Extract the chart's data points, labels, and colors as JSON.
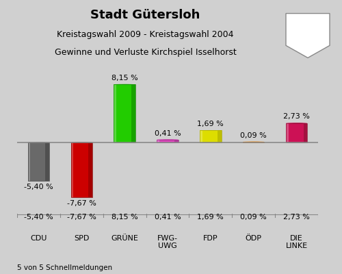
{
  "title": "Stadt Gütersloh",
  "subtitle1": "Kreistagswahl 2009 - Kreistagswahl 2004",
  "subtitle2": "Gewinne und Verluste Kirchspiel Isselhorst",
  "footer": "5 von 5 Schnellmeldungen",
  "categories": [
    "CDU",
    "SPD",
    "GRÜNE",
    "FWG-\nUWG",
    "FDP",
    "ÖDP",
    "DIE\nLINKE"
  ],
  "values": [
    -5.4,
    -7.67,
    8.15,
    0.41,
    1.69,
    0.09,
    2.73
  ],
  "value_labels": [
    "-5,40 %",
    "-7,67 %",
    "8,15 %",
    "0,41 %",
    "1,69 %",
    "0,09 %",
    "2,73 %"
  ],
  "colors": [
    "#696969",
    "#cc0000",
    "#22cc00",
    "#dd44bb",
    "#dddd00",
    "#ff8c00",
    "#cc1155"
  ],
  "shadow_colors": [
    "#404040",
    "#880000",
    "#118800",
    "#993388",
    "#aaaa00",
    "#cc6600",
    "#881133"
  ],
  "background_color": "#d0d0d0",
  "chart_bg": "#ffffff",
  "bar_width": 0.5,
  "ylim_min": -10.0,
  "ylim_max": 10.0,
  "title_fontsize": 13,
  "subtitle_fontsize": 9,
  "label_fontsize": 8,
  "value_fontsize": 8
}
